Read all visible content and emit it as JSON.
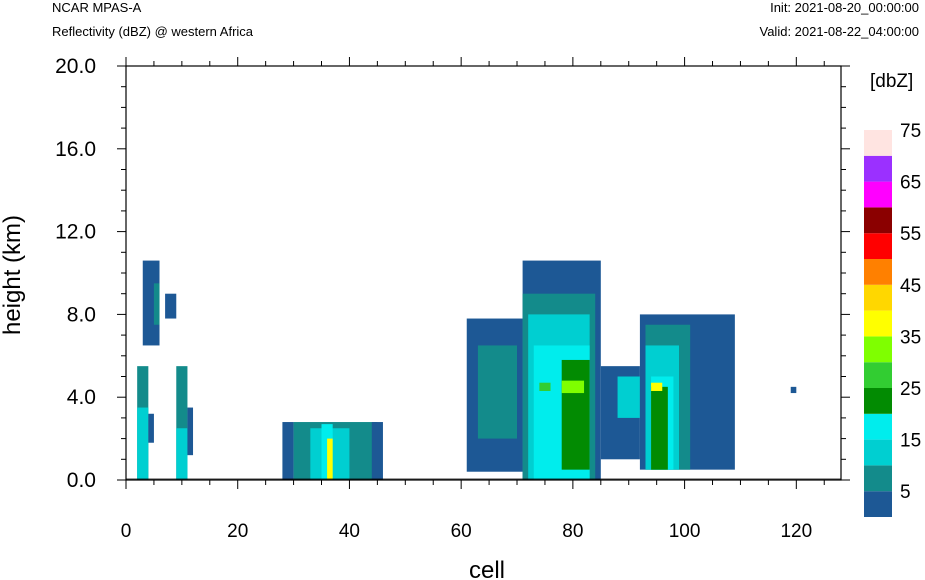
{
  "header": {
    "model": "NCAR MPAS-A",
    "subtitle": "Reflectivity (dBZ) @ western Africa",
    "init": "Init: 2021-08-20_00:00:00",
    "valid": "Valid: 2021-08-22_04:00:00"
  },
  "chart_data": {
    "type": "heatmap",
    "title": "Reflectivity (dBZ) @ western Africa",
    "xlabel": "cell",
    "ylabel": "height (km)",
    "xlim": [
      0,
      128
    ],
    "ylim": [
      0,
      20
    ],
    "x_ticks": [
      0,
      20,
      40,
      60,
      80,
      100,
      120
    ],
    "y_ticks": [
      0.0,
      4.0,
      8.0,
      12.0,
      16.0,
      20.0
    ],
    "x_tick_labels": [
      "0",
      "20",
      "40",
      "60",
      "80",
      "100",
      "120"
    ],
    "y_tick_labels": [
      "0.0",
      "4.0",
      "8.0",
      "12.0",
      "16.0",
      "20.0"
    ],
    "colorbar": {
      "unit_label": "[dbZ]",
      "tick_labels": [
        "5",
        "15",
        "25",
        "35",
        "45",
        "55",
        "65",
        "75"
      ],
      "bins": [
        {
          "from": 0,
          "to": 5,
          "color": "#1d5895"
        },
        {
          "from": 5,
          "to": 10,
          "color": "#138b8b"
        },
        {
          "from": 10,
          "to": 15,
          "color": "#00cfd1"
        },
        {
          "from": 15,
          "to": 20,
          "color": "#00eded"
        },
        {
          "from": 20,
          "to": 25,
          "color": "#028b02"
        },
        {
          "from": 25,
          "to": 30,
          "color": "#32cd32"
        },
        {
          "from": 30,
          "to": 35,
          "color": "#7fff00"
        },
        {
          "from": 35,
          "to": 40,
          "color": "#ffff00"
        },
        {
          "from": 40,
          "to": 45,
          "color": "#ffd700"
        },
        {
          "from": 45,
          "to": 50,
          "color": "#ff8000"
        },
        {
          "from": 50,
          "to": 55,
          "color": "#ff0000"
        },
        {
          "from": 55,
          "to": 60,
          "color": "#8b0000"
        },
        {
          "from": 60,
          "to": 65,
          "color": "#ff00ff"
        },
        {
          "from": 65,
          "to": 70,
          "color": "#9b30ff"
        },
        {
          "from": 70,
          "to": 75,
          "color": "#ffe4e1"
        }
      ]
    },
    "echoes": [
      {
        "x0": 2,
        "x1": 4,
        "z0": 0,
        "z1": 5.5,
        "dbz": 7
      },
      {
        "x0": 2,
        "x1": 4,
        "z0": 0,
        "z1": 3.5,
        "dbz": 12
      },
      {
        "x0": 3,
        "x1": 6,
        "z0": 6.5,
        "z1": 10.6,
        "dbz": 3
      },
      {
        "x0": 5,
        "x1": 6,
        "z0": 7.5,
        "z1": 9.5,
        "dbz": 7
      },
      {
        "x0": 7,
        "x1": 9,
        "z0": 7.8,
        "z1": 9.0,
        "dbz": 3
      },
      {
        "x0": 4,
        "x1": 5,
        "z0": 1.8,
        "z1": 3.2,
        "dbz": 3
      },
      {
        "x0": 9,
        "x1": 11,
        "z0": 0,
        "z1": 5.5,
        "dbz": 7
      },
      {
        "x0": 9,
        "x1": 11,
        "z0": 0,
        "z1": 2.5,
        "dbz": 12
      },
      {
        "x0": 11,
        "x1": 12,
        "z0": 1.2,
        "z1": 3.5,
        "dbz": 3
      },
      {
        "x0": 28,
        "x1": 30,
        "z0": 0,
        "z1": 2.8,
        "dbz": 3
      },
      {
        "x0": 30,
        "x1": 45,
        "z0": 0,
        "z1": 2.8,
        "dbz": 7
      },
      {
        "x0": 33,
        "x1": 40,
        "z0": 0,
        "z1": 2.5,
        "dbz": 12
      },
      {
        "x0": 35,
        "x1": 37,
        "z0": 0,
        "z1": 2.7,
        "dbz": 17
      },
      {
        "x0": 36,
        "x1": 37,
        "z0": 0,
        "z1": 2.0,
        "dbz": 37
      },
      {
        "x0": 44,
        "x1": 46,
        "z0": 0,
        "z1": 2.8,
        "dbz": 3
      },
      {
        "x0": 61,
        "x1": 71,
        "z0": 0.4,
        "z1": 7.8,
        "dbz": 3
      },
      {
        "x0": 63,
        "x1": 70,
        "z0": 2.0,
        "z1": 6.5,
        "dbz": 7
      },
      {
        "x0": 71,
        "x1": 85,
        "z0": 0,
        "z1": 10.6,
        "dbz": 3
      },
      {
        "x0": 71,
        "x1": 84,
        "z0": 0,
        "z1": 9.0,
        "dbz": 7
      },
      {
        "x0": 72,
        "x1": 83,
        "z0": 0,
        "z1": 8.0,
        "dbz": 12
      },
      {
        "x0": 73,
        "x1": 83,
        "z0": 0,
        "z1": 6.5,
        "dbz": 17
      },
      {
        "x0": 74,
        "x1": 76,
        "z0": 4.3,
        "z1": 4.7,
        "dbz": 27
      },
      {
        "x0": 78,
        "x1": 83,
        "z0": 0.5,
        "z1": 5.8,
        "dbz": 22
      },
      {
        "x0": 78,
        "x1": 82,
        "z0": 4.2,
        "z1": 4.8,
        "dbz": 32
      },
      {
        "x0": 85,
        "x1": 92,
        "z0": 1.0,
        "z1": 5.5,
        "dbz": 3
      },
      {
        "x0": 88,
        "x1": 92,
        "z0": 3.0,
        "z1": 5.0,
        "dbz": 12
      },
      {
        "x0": 92,
        "x1": 109,
        "z0": 0.5,
        "z1": 8.0,
        "dbz": 3
      },
      {
        "x0": 93,
        "x1": 101,
        "z0": 0.5,
        "z1": 7.5,
        "dbz": 7
      },
      {
        "x0": 93,
        "x1": 99,
        "z0": 0.5,
        "z1": 6.5,
        "dbz": 12
      },
      {
        "x0": 94,
        "x1": 98,
        "z0": 0.5,
        "z1": 5.0,
        "dbz": 17
      },
      {
        "x0": 94,
        "x1": 97,
        "z0": 0.5,
        "z1": 4.5,
        "dbz": 22
      },
      {
        "x0": 94,
        "x1": 96,
        "z0": 4.3,
        "z1": 4.7,
        "dbz": 37
      },
      {
        "x0": 119,
        "x1": 120,
        "z0": 4.2,
        "z1": 4.5,
        "dbz": 3
      }
    ]
  }
}
